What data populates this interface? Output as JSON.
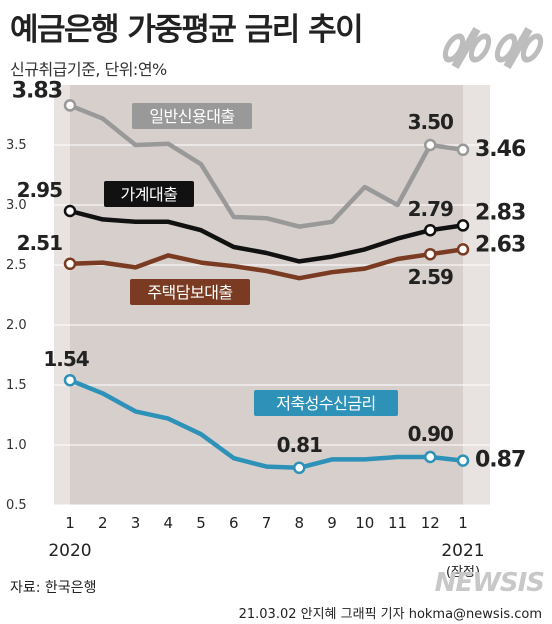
{
  "title": "예금은행 가중평균 금리 추이",
  "subtitle": "신규취급기준, 단위:연%",
  "source": "자료: 한국은행",
  "credit": "21.03.02 안지혜 그래픽 기자 hokma@newsis.com",
  "watermark": "NEWSIS",
  "chart_data": {
    "type": "line",
    "categories": [
      "1",
      "2",
      "3",
      "4",
      "5",
      "6",
      "7",
      "8",
      "9",
      "10",
      "11",
      "12",
      "1"
    ],
    "year_labels": [
      {
        "label": "2020",
        "index": 0
      },
      {
        "label": "2021",
        "index": 12
      }
    ],
    "provisional_note": "(잠정)",
    "ylim": [
      0.5,
      4.0
    ],
    "yticks": [
      "0.5",
      "1.0",
      "1.5",
      "2.0",
      "2.5",
      "3.0",
      "3.5"
    ],
    "colors": {
      "일반신용대출": "#999999",
      "가계대출": "#111111",
      "주택담보대출": "#7a3b22",
      "저축성수신금리": "#2e92b8"
    },
    "series": [
      {
        "name": "일반신용대출",
        "values": [
          3.83,
          3.72,
          3.5,
          3.51,
          3.34,
          2.9,
          2.89,
          2.82,
          2.86,
          3.15,
          3.0,
          3.5,
          3.46
        ],
        "labels": [
          {
            "index": 0,
            "text": "3.83"
          },
          {
            "index": 11,
            "text": "3.50"
          },
          {
            "index": 12,
            "text": "3.46"
          }
        ]
      },
      {
        "name": "가계대출",
        "values": [
          2.95,
          2.88,
          2.86,
          2.86,
          2.79,
          2.65,
          2.6,
          2.53,
          2.57,
          2.63,
          2.72,
          2.79,
          2.83
        ],
        "labels": [
          {
            "index": 0,
            "text": "2.95"
          },
          {
            "index": 11,
            "text": "2.79"
          },
          {
            "index": 12,
            "text": "2.83"
          }
        ]
      },
      {
        "name": "주택담보대출",
        "values": [
          2.51,
          2.52,
          2.48,
          2.58,
          2.52,
          2.49,
          2.45,
          2.39,
          2.44,
          2.47,
          2.55,
          2.59,
          2.63
        ],
        "labels": [
          {
            "index": 0,
            "text": "2.51"
          },
          {
            "index": 11,
            "text": "2.59"
          },
          {
            "index": 12,
            "text": "2.63"
          }
        ]
      },
      {
        "name": "저축성수신금리",
        "values": [
          1.54,
          1.43,
          1.28,
          1.22,
          1.09,
          0.89,
          0.82,
          0.81,
          0.88,
          0.88,
          0.9,
          0.9,
          0.87
        ],
        "labels": [
          {
            "index": 0,
            "text": "1.54"
          },
          {
            "index": 7,
            "text": "0.81"
          },
          {
            "index": 11,
            "text": "0.90"
          },
          {
            "index": 12,
            "text": "0.87"
          }
        ]
      }
    ]
  }
}
